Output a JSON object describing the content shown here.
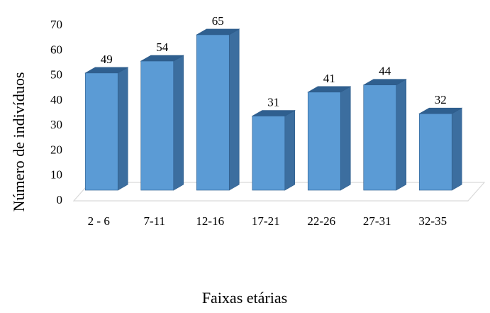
{
  "chart_data": {
    "type": "bar",
    "style": "3d-column",
    "categories": [
      "2 - 6",
      "7-11",
      "12-16",
      "17-21",
      "22-26",
      "27-31",
      "32-35"
    ],
    "values": [
      49,
      54,
      65,
      31,
      41,
      44,
      32
    ],
    "data_labels": [
      "49",
      "54",
      "65",
      "31",
      "41",
      "44",
      "32"
    ],
    "title": "",
    "xlabel": "Faixas etárias",
    "ylabel": "Número de indivíduos",
    "ylim": [
      0,
      70
    ],
    "yticks": [
      "0",
      "10",
      "20",
      "30",
      "40",
      "50",
      "60",
      "70"
    ],
    "grid": false,
    "legend": "none",
    "colors": {
      "bar_front": "#5b9bd5",
      "bar_side": "#3c6e9f",
      "bar_top": "#2f5f8f",
      "bar_outline": "#2e5c8a",
      "floor": "#d9d9d9"
    }
  }
}
